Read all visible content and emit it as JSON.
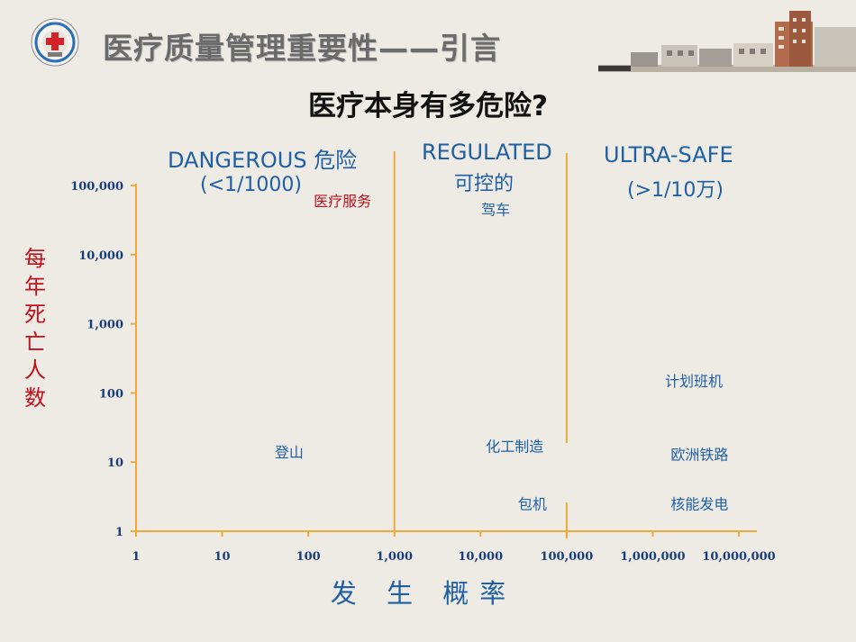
{
  "header": {
    "title": "医疗质量管理重要性——引言",
    "logo_icon": "hospital-red-cross-logo-icon",
    "banner_icon": "hospital-buildings-banner-icon"
  },
  "colors": {
    "axis": "#f2a93b",
    "label_blue": "#1f5fa3",
    "label_red": "#c0111c",
    "tick": "#1a3d7a"
  },
  "chart_data": {
    "type": "scatter",
    "title": "医疗本身有多危险?",
    "xlabel": "发 生 概率",
    "ylabel": "每年死亡人数",
    "x_scale": "log",
    "y_scale": "log",
    "xlim": [
      1,
      10000000
    ],
    "ylim": [
      1,
      100000
    ],
    "x_ticks": [
      "1",
      "10",
      "100",
      "1,000",
      "10,000",
      "100,000",
      "1,000,000",
      "10,000,000"
    ],
    "y_ticks": [
      "1",
      "10",
      "100",
      "1,000",
      "10,000",
      "100,000"
    ],
    "zones": [
      {
        "title": "DANGEROUS 危险",
        "subtitle": "(<1/1000)"
      },
      {
        "title": "REGULATED",
        "subtitle": "可控的"
      },
      {
        "title": "ULTRA-SAFE",
        "subtitle": "(>1/10万)"
      }
    ],
    "zone_boundaries_x": [
      1000,
      100000
    ],
    "points": [
      {
        "label": "医疗服务",
        "x": 250,
        "y": 60000,
        "highlight": true
      },
      {
        "label": "驾车",
        "x": 15000,
        "y": 45000,
        "highlight": false
      },
      {
        "label": "计划班机",
        "x": 3000000,
        "y": 150,
        "highlight": false
      },
      {
        "label": "化工制造",
        "x": 25000,
        "y": 17,
        "highlight": false
      },
      {
        "label": "登山",
        "x": 60,
        "y": 14,
        "highlight": false
      },
      {
        "label": "欧洲铁路",
        "x": 3500000,
        "y": 13,
        "highlight": false
      },
      {
        "label": "包机",
        "x": 40000,
        "y": 2.5,
        "highlight": false
      },
      {
        "label": "核能发电",
        "x": 3500000,
        "y": 2.5,
        "highlight": false
      }
    ]
  }
}
